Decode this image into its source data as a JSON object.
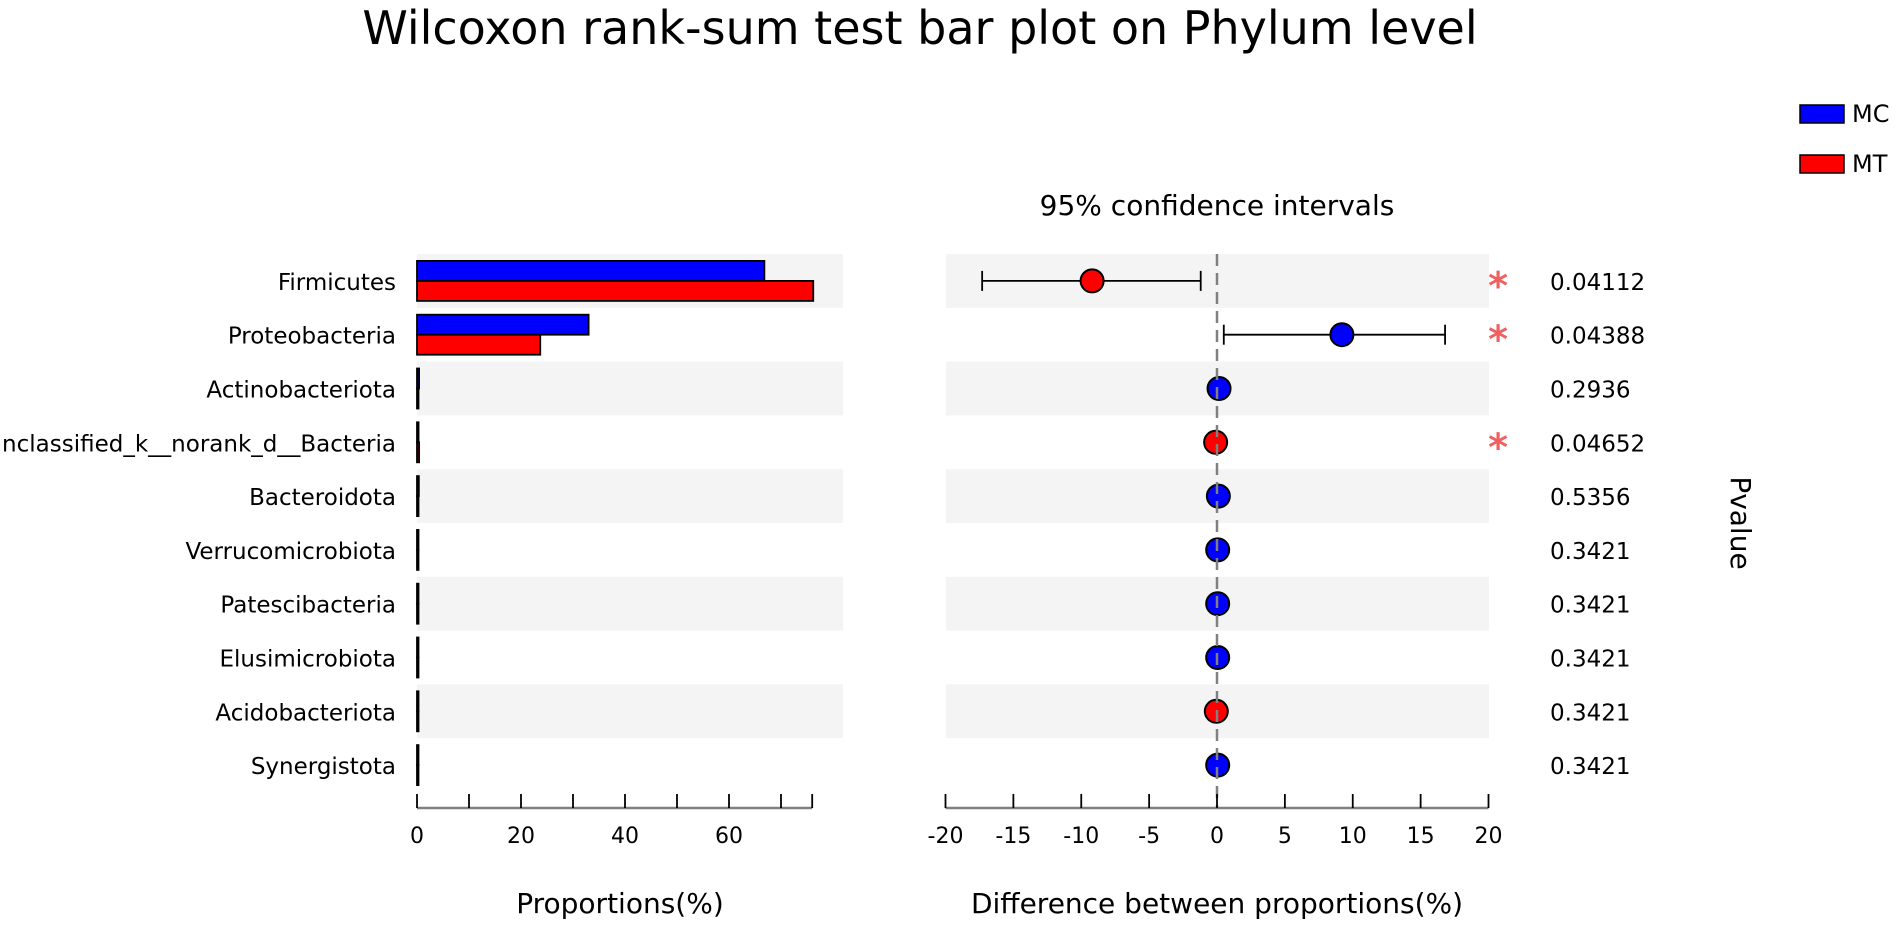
{
  "chart_data": {
    "type": "bar",
    "title": "Wilcoxon rank-sum test bar plot on Phylum level",
    "categories": [
      "Firmicutes",
      "Proteobacteria",
      "Actinobacteriota",
      "unclassified_k__norank_d__Bacteria",
      "Bacteroidota",
      "Verrucomicrobiota",
      "Patescibacteria",
      "Elusimicrobiota",
      "Acidobacteriota",
      "Synergistota"
    ],
    "series": [
      {
        "name": "MC",
        "color": "#0000ff",
        "values": [
          66.8,
          33.0,
          0.4,
          0.3,
          0.35,
          0.15,
          0.15,
          0.1,
          0.05,
          0.05
        ]
      },
      {
        "name": "MT",
        "color": "#ff0000",
        "values": [
          76.2,
          23.7,
          0.2,
          0.4,
          0.25,
          0.05,
          0.05,
          0.02,
          0.1,
          0.02
        ]
      }
    ],
    "xlabel": "Proportions(%)",
    "xlim": [
      0,
      76
    ],
    "xticks": [
      0,
      20,
      40,
      60
    ],
    "ci_panel": {
      "title": "95% confidence intervals",
      "xlabel": "Difference between proportions(%)",
      "xlim": [
        -20,
        20
      ],
      "xticks": [
        -20,
        -15,
        -10,
        -5,
        0,
        5,
        10,
        15,
        20
      ],
      "diff": [
        -9.2,
        9.2,
        0.15,
        -0.1,
        0.1,
        0.05,
        0.05,
        0.05,
        -0.05,
        0.05
      ],
      "lower": [
        -17.3,
        0.5,
        null,
        null,
        null,
        null,
        null,
        null,
        null,
        null
      ],
      "upper": [
        -1.2,
        16.8,
        null,
        null,
        null,
        null,
        null,
        null,
        null,
        null
      ],
      "point_group": [
        "MT",
        "MC",
        "MC",
        "MT",
        "MC",
        "MC",
        "MC",
        "MC",
        "MT",
        "MC"
      ],
      "significant": [
        true,
        true,
        false,
        true,
        false,
        false,
        false,
        false,
        false,
        false
      ],
      "star_symbol": "*",
      "star_color": "#f06060"
    },
    "pvalues": [
      "0.04112",
      "0.04388",
      "0.2936",
      "0.04652",
      "0.5356",
      "0.3421",
      "0.3421",
      "0.3421",
      "0.3421",
      "0.3421"
    ],
    "pvalue_label": "Pvalue",
    "legend_position": "top-right",
    "band_color": "#f4f4f4"
  }
}
